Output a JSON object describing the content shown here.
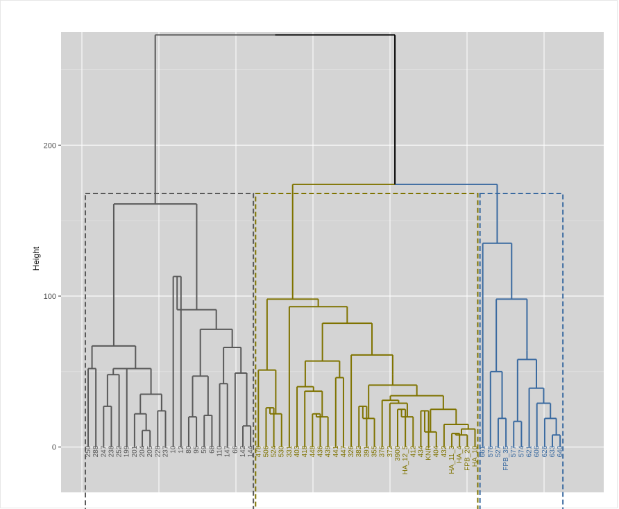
{
  "chart_data": {
    "type": "dendrogram",
    "ylabel": "Height",
    "ylim": [
      -30,
      275
    ],
    "y_ticks": [
      0,
      100,
      200
    ],
    "grid": true,
    "clusters": [
      {
        "color": "#595959",
        "leaves": [
          "250",
          "288",
          "247",
          "238",
          "252",
          "199",
          "201",
          "204",
          "205",
          "228",
          "237",
          "10",
          "12",
          "80",
          "95",
          "59",
          "68",
          "110",
          "147",
          "66",
          "142",
          "144"
        ]
      },
      {
        "color": "#7f7300",
        "leaves": [
          "478",
          "506",
          "524",
          "530",
          "331",
          "403",
          "418",
          "448",
          "436",
          "439",
          "441",
          "447",
          "326",
          "382",
          "391",
          "355",
          "376",
          "372",
          "3900",
          "HA_12_5",
          "412",
          "434",
          "KNR",
          "404",
          "432",
          "HA_11_3",
          "HA_4",
          "FPB_20",
          "HA_10"
        ]
      },
      {
        "color": "#3a6aa0",
        "leaves": [
          "661",
          "576",
          "527",
          "FPB_35",
          "577",
          "574",
          "621",
          "606",
          "626",
          "633",
          "640"
        ]
      }
    ],
    "merges": [
      {
        "id": "g1",
        "h": 52,
        "children": [
          "250",
          "288"
        ]
      },
      {
        "id": "g2",
        "h": 27,
        "children": [
          "247",
          "238"
        ]
      },
      {
        "id": "g3",
        "h": 48,
        "children": [
          "g2",
          "252"
        ]
      },
      {
        "id": "g4",
        "h": 52,
        "children": [
          "g3",
          "199"
        ]
      },
      {
        "id": "g5",
        "h": 11,
        "children": [
          "204",
          "205"
        ]
      },
      {
        "id": "g6",
        "h": 22,
        "children": [
          "201",
          "g5"
        ]
      },
      {
        "id": "g7",
        "h": 24,
        "children": [
          "228",
          "237"
        ]
      },
      {
        "id": "g8",
        "h": 35,
        "children": [
          "g6",
          "g7"
        ]
      },
      {
        "id": "g9",
        "h": 52,
        "children": [
          "g4",
          "g8"
        ]
      },
      {
        "id": "g10",
        "h": 67,
        "children": [
          "g1",
          "g9"
        ]
      },
      {
        "id": "g11",
        "h": 113,
        "children": [
          "10",
          "12"
        ]
      },
      {
        "id": "g12",
        "h": 20,
        "children": [
          "80",
          "95"
        ]
      },
      {
        "id": "g13",
        "h": 21,
        "children": [
          "59",
          "68"
        ]
      },
      {
        "id": "g14",
        "h": 47,
        "children": [
          "g12",
          "g13"
        ]
      },
      {
        "id": "g15",
        "h": 42,
        "children": [
          "110",
          "147"
        ]
      },
      {
        "id": "g16",
        "h": 14,
        "children": [
          "142",
          "144"
        ]
      },
      {
        "id": "g17",
        "h": 49,
        "children": [
          "66",
          "g16"
        ]
      },
      {
        "id": "g18",
        "h": 66,
        "children": [
          "g15",
          "g17"
        ]
      },
      {
        "id": "g19",
        "h": 78,
        "children": [
          "g14",
          "g18"
        ]
      },
      {
        "id": "g20",
        "h": 91,
        "children": [
          "g11",
          "g19"
        ]
      },
      {
        "id": "g21",
        "h": 161,
        "children": [
          "g10",
          "g20"
        ]
      },
      {
        "id": "o1",
        "h": 26,
        "children": [
          "506",
          "524"
        ]
      },
      {
        "id": "o2",
        "h": 22,
        "children": [
          "o1",
          "530"
        ]
      },
      {
        "id": "o3",
        "h": 51,
        "children": [
          "478",
          "o2"
        ]
      },
      {
        "id": "o4",
        "h": 22,
        "children": [
          "448",
          "436"
        ]
      },
      {
        "id": "o5",
        "h": 20,
        "children": [
          "o4",
          "439"
        ]
      },
      {
        "id": "o6",
        "h": 37,
        "children": [
          "418",
          "o5"
        ]
      },
      {
        "id": "o7",
        "h": 40,
        "children": [
          "403",
          "o6"
        ]
      },
      {
        "id": "o8",
        "h": 46,
        "children": [
          "441",
          "447"
        ]
      },
      {
        "id": "o9",
        "h": 57,
        "children": [
          "o7",
          "o8"
        ]
      },
      {
        "id": "o10",
        "h": 27,
        "children": [
          "382",
          "391"
        ]
      },
      {
        "id": "o11",
        "h": 19,
        "children": [
          "o10",
          "355"
        ]
      },
      {
        "id": "o12",
        "h": 25,
        "children": [
          "3900",
          "HA_12_5"
        ]
      },
      {
        "id": "o13",
        "h": 20,
        "children": [
          "o12",
          "412"
        ]
      },
      {
        "id": "o14",
        "h": 29,
        "children": [
          "372",
          "o13"
        ]
      },
      {
        "id": "o15",
        "h": 31,
        "children": [
          "376",
          "o14"
        ]
      },
      {
        "id": "o16",
        "h": 24,
        "children": [
          "434",
          "KNR"
        ]
      },
      {
        "id": "o17",
        "h": 10,
        "children": [
          "o16",
          "404"
        ]
      },
      {
        "id": "o18",
        "h": 9,
        "children": [
          "HA_11_3",
          "HA_4"
        ]
      },
      {
        "id": "o19",
        "h": 8,
        "children": [
          "o18",
          "FPB_20"
        ]
      },
      {
        "id": "o20",
        "h": 12,
        "children": [
          "o19",
          "HA_10"
        ]
      },
      {
        "id": "o21",
        "h": 15,
        "children": [
          "o20",
          "432"
        ]
      },
      {
        "id": "o22",
        "h": 25,
        "children": [
          "o21",
          "o17"
        ]
      },
      {
        "id": "o23",
        "h": 34,
        "children": [
          "o15",
          "o22"
        ]
      },
      {
        "id": "o24",
        "h": 41,
        "children": [
          "o11",
          "o23"
        ]
      },
      {
        "id": "o25",
        "h": 48,
        "children": [
          "o24",
          "o23b"
        ]
      },
      {
        "id": "o26",
        "h": 61,
        "children": [
          "326",
          "o25"
        ]
      },
      {
        "id": "o27",
        "h": 82,
        "children": [
          "o9",
          "o26"
        ]
      },
      {
        "id": "o28",
        "h": 93,
        "children": [
          "331",
          "o27"
        ]
      },
      {
        "id": "o29",
        "h": 98,
        "children": [
          "o3",
          "o28"
        ]
      },
      {
        "id": "b1",
        "h": 19,
        "children": [
          "527",
          "FPB_35"
        ]
      },
      {
        "id": "b2",
        "h": 50,
        "children": [
          "576",
          "b1"
        ]
      },
      {
        "id": "b3",
        "h": 17,
        "children": [
          "577",
          "574"
        ]
      },
      {
        "id": "b4",
        "h": 8,
        "children": [
          "633",
          "640"
        ]
      },
      {
        "id": "b5",
        "h": 19,
        "children": [
          "626",
          "b4"
        ]
      },
      {
        "id": "b6",
        "h": 29,
        "children": [
          "606",
          "b5"
        ]
      },
      {
        "id": "b7",
        "h": 39,
        "children": [
          "621",
          "b6"
        ]
      },
      {
        "id": "b8",
        "h": 58,
        "children": [
          "b3",
          "b7"
        ]
      },
      {
        "id": "b9",
        "h": 64,
        "children": [
          "b8",
          "b8b"
        ]
      },
      {
        "id": "b10",
        "h": 98,
        "children": [
          "b2",
          "b9"
        ]
      },
      {
        "id": "b11",
        "h": 135,
        "children": [
          "661",
          "b10"
        ]
      },
      {
        "id": "r1",
        "h": 174,
        "children": [
          "o29",
          "b11"
        ]
      },
      {
        "id": "root",
        "h": 273,
        "children": [
          "g21",
          "r1"
        ]
      }
    ],
    "cut_boxes": [
      {
        "color": "#595959",
        "from": "250",
        "to": "144",
        "top": 168
      },
      {
        "color": "#7f7300",
        "from": "478",
        "to": "HA_10",
        "top": 168
      },
      {
        "color": "#3a6aa0",
        "from": "661",
        "to": "640",
        "top": 168
      }
    ]
  }
}
